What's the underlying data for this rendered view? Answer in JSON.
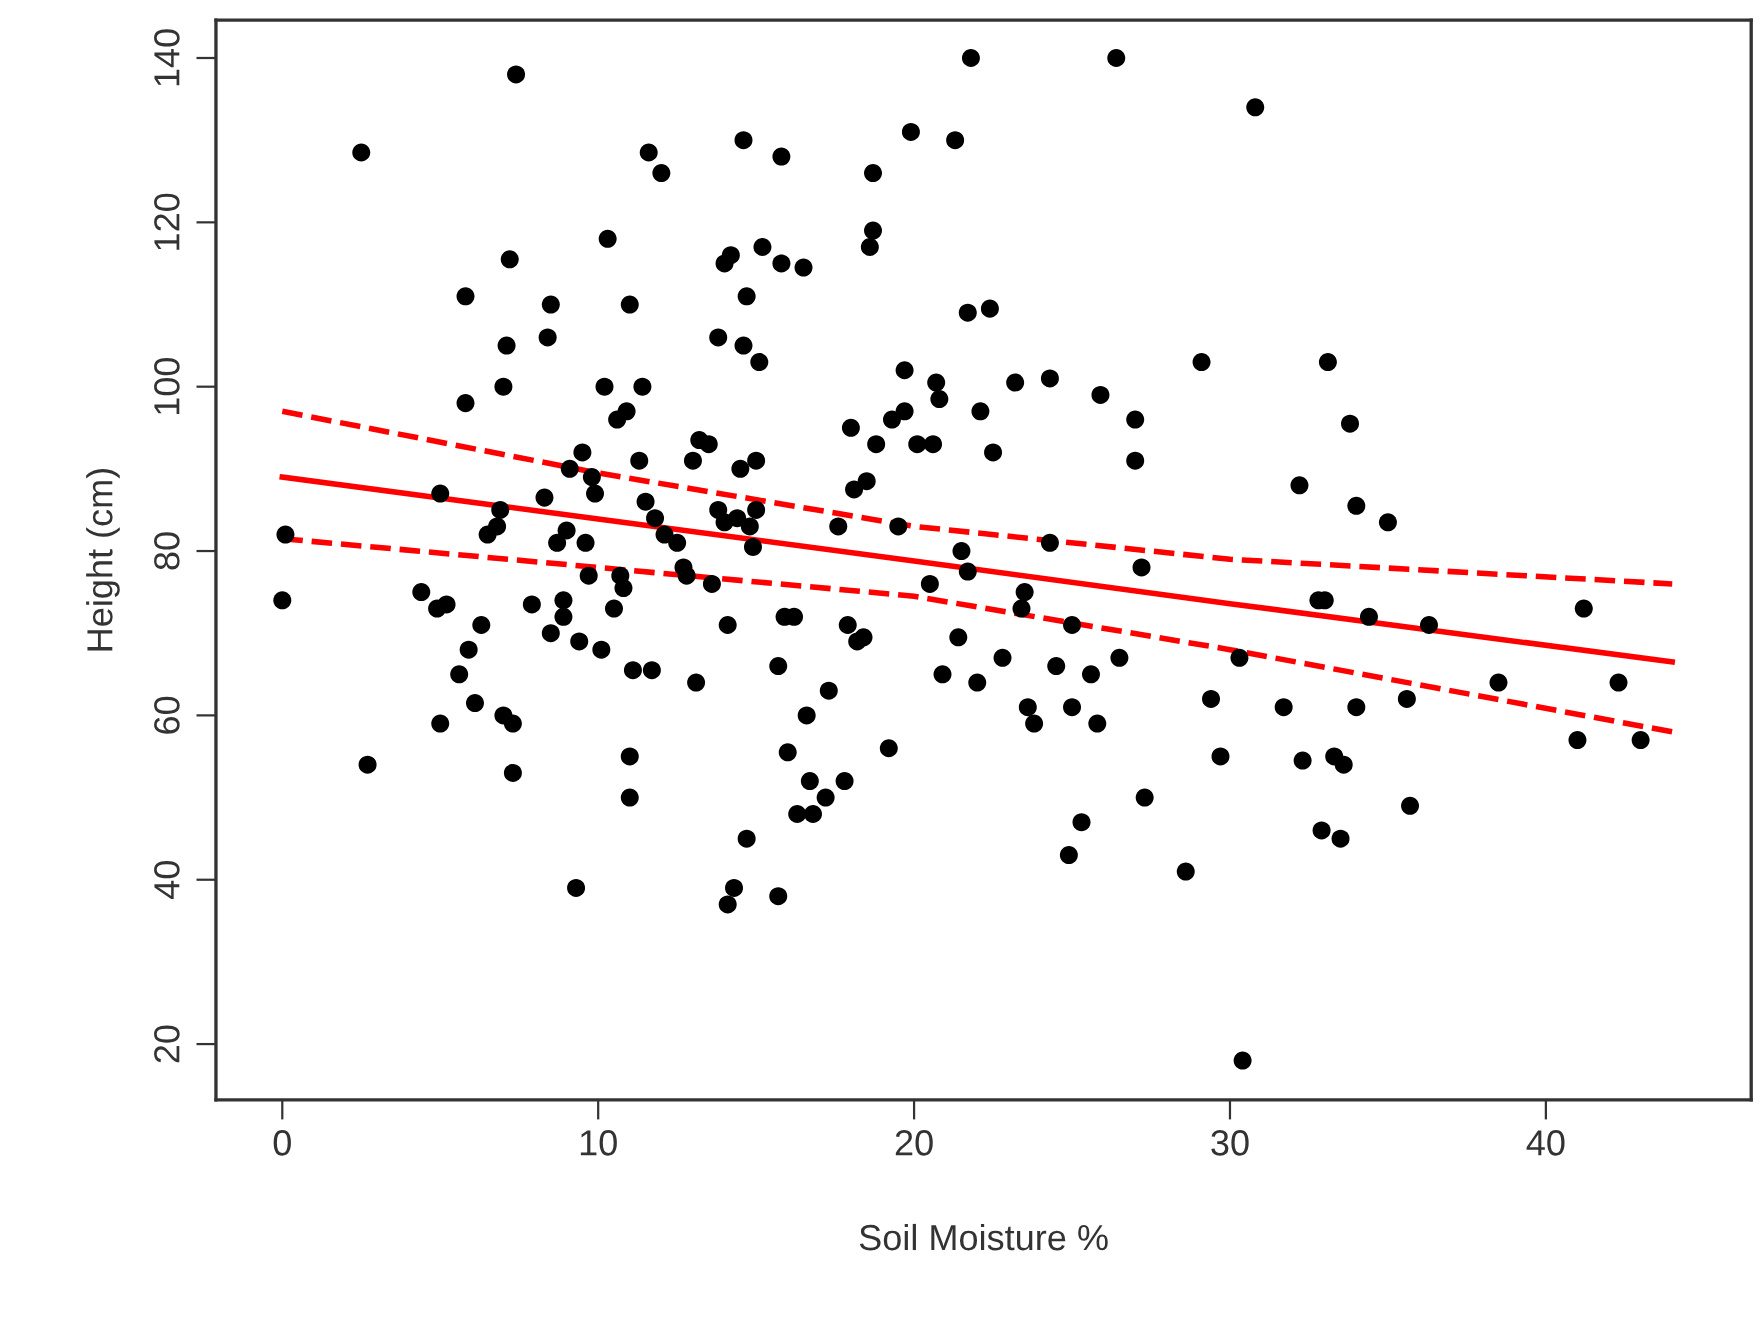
{
  "chart_data": {
    "type": "scatter",
    "xlabel": "Soil Moisture %",
    "ylabel": "Height (cm)",
    "xlim": [
      -2.1,
      46.5
    ],
    "ylim": [
      13.2,
      144.6
    ],
    "xticks": [
      0,
      10,
      20,
      30,
      40
    ],
    "yticks": [
      20,
      40,
      60,
      80,
      100,
      120,
      140
    ],
    "grid": false,
    "series": [
      {
        "marker": "circle",
        "color": "#000000",
        "x": [
          0.1,
          0,
          2.5,
          2.7,
          4.4,
          4.9,
          5.0,
          5.0,
          5.2,
          5.6,
          5.8,
          5.8,
          5.9,
          6.1,
          6.3,
          6.5,
          6.8,
          6.9,
          7.0,
          7.0,
          7.1,
          7.2,
          7.3,
          7.3,
          7.4,
          7.9,
          8.3,
          8.4,
          8.5,
          8.5,
          8.7,
          8.9,
          8.9,
          9.0,
          9.1,
          9.3,
          9.4,
          9.5,
          9.6,
          9.7,
          9.8,
          9.9,
          10.1,
          10.2,
          10.3,
          10.5,
          10.6,
          10.7,
          10.8,
          10.9,
          11.0,
          11.0,
          11.0,
          11.1,
          11.3,
          11.4,
          11.5,
          11.6,
          11.7,
          11.8,
          12.0,
          12.1,
          12.5,
          12.7,
          12.8,
          13.0,
          13.1,
          13.2,
          13.5,
          13.6,
          13.8,
          13.8,
          14.0,
          14.0,
          14.1,
          14.1,
          14.2,
          14.3,
          14.4,
          14.5,
          14.6,
          14.6,
          14.7,
          14.7,
          14.8,
          14.9,
          15.0,
          15.0,
          15.1,
          15.2,
          15.7,
          15.7,
          15.8,
          15.8,
          15.9,
          16.0,
          16.2,
          16.3,
          16.5,
          16.6,
          16.7,
          16.8,
          17.2,
          17.3,
          17.6,
          17.9,
          17.8,
          18.0,
          18.1,
          18.2,
          18.4,
          18.5,
          18.6,
          18.7,
          18.7,
          18.8,
          19.2,
          19.3,
          19.5,
          19.7,
          19.7,
          19.9,
          20.1,
          20.5,
          20.6,
          20.7,
          20.8,
          20.9,
          21.3,
          21.4,
          21.5,
          21.7,
          21.7,
          21.8,
          22.0,
          22.1,
          22.4,
          22.5,
          22.8,
          23.2,
          23.4,
          23.5,
          23.6,
          23.8,
          24.3,
          24.3,
          24.5,
          24.9,
          25.0,
          25.0,
          25.3,
          25.6,
          25.8,
          25.9,
          26.4,
          26.5,
          27.0,
          27.0,
          27.2,
          27.3,
          28.6,
          29.1,
          29.4,
          29.7,
          30.3,
          30.4,
          30.8,
          31.7,
          32.2,
          32.3,
          32.8,
          32.9,
          33.0,
          33.1,
          33.3,
          33.5,
          33.6,
          33.8,
          34.0,
          34.0,
          34.4,
          35.0,
          35.6,
          35.7,
          36.3,
          38.5,
          41.0,
          41.2,
          42.3,
          43.0
        ],
        "values": [
          82,
          74,
          128.5,
          54,
          75,
          73,
          87,
          59,
          73.5,
          65,
          111,
          98,
          68,
          61.5,
          71,
          82,
          83,
          85,
          60,
          100,
          105,
          115.5,
          59,
          53,
          138,
          73.5,
          86.5,
          106,
          110,
          70,
          81,
          72,
          74,
          82.5,
          90,
          39,
          69,
          92,
          81,
          77,
          89,
          87,
          68,
          100,
          118,
          73,
          96,
          77,
          75.5,
          97,
          110,
          55,
          50,
          65.5,
          91,
          100,
          86,
          128.5,
          65.5,
          84,
          126,
          82,
          81,
          78,
          77,
          91,
          64,
          93.5,
          93,
          76,
          106,
          85,
          115,
          83.5,
          71,
          37,
          116,
          39,
          84,
          90,
          130,
          105,
          111,
          45,
          83,
          80.5,
          85,
          91,
          103,
          117,
          38,
          66,
          115,
          128,
          72,
          55.5,
          72,
          48,
          114.5,
          60,
          52,
          48,
          50,
          63,
          83,
          71,
          52,
          95,
          87.5,
          69,
          69.5,
          88.5,
          117,
          119,
          126,
          93,
          56,
          96,
          83,
          97,
          102,
          131,
          93,
          76,
          93,
          100.5,
          98.5,
          65,
          130,
          69.5,
          80,
          77.5,
          109,
          140,
          64,
          97,
          109.5,
          92,
          67,
          100.5,
          73,
          75,
          61,
          59,
          81,
          101,
          66,
          43,
          61,
          71,
          47,
          65,
          59,
          99,
          140,
          67,
          96,
          91,
          78,
          50,
          41,
          103,
          62,
          55,
          67,
          18,
          134,
          61,
          88,
          54.5,
          74,
          46,
          74,
          103,
          55,
          45,
          54,
          95.5,
          61,
          85.5,
          72,
          83.5,
          62,
          49,
          71,
          64,
          57,
          73,
          64,
          57
        ]
      },
      {
        "type": "line",
        "marker": "none",
        "color": "#ff0000",
        "line_style": "solid",
        "x": [
          0,
          10,
          20,
          30,
          44
        ],
        "values": [
          89,
          83.9,
          78.8,
          73.6,
          66.5
        ]
      },
      {
        "type": "line",
        "marker": "none",
        "color": "#ff0000",
        "line_style": "dashed",
        "x": [
          0,
          10,
          20,
          30,
          44
        ],
        "values": [
          97,
          89.5,
          83,
          79,
          76
        ]
      },
      {
        "type": "line",
        "marker": "none",
        "color": "#ff0000",
        "line_style": "dashed",
        "x": [
          0,
          10,
          20,
          30,
          44
        ],
        "values": [
          81.5,
          78,
          74.5,
          68,
          58
        ]
      }
    ]
  }
}
